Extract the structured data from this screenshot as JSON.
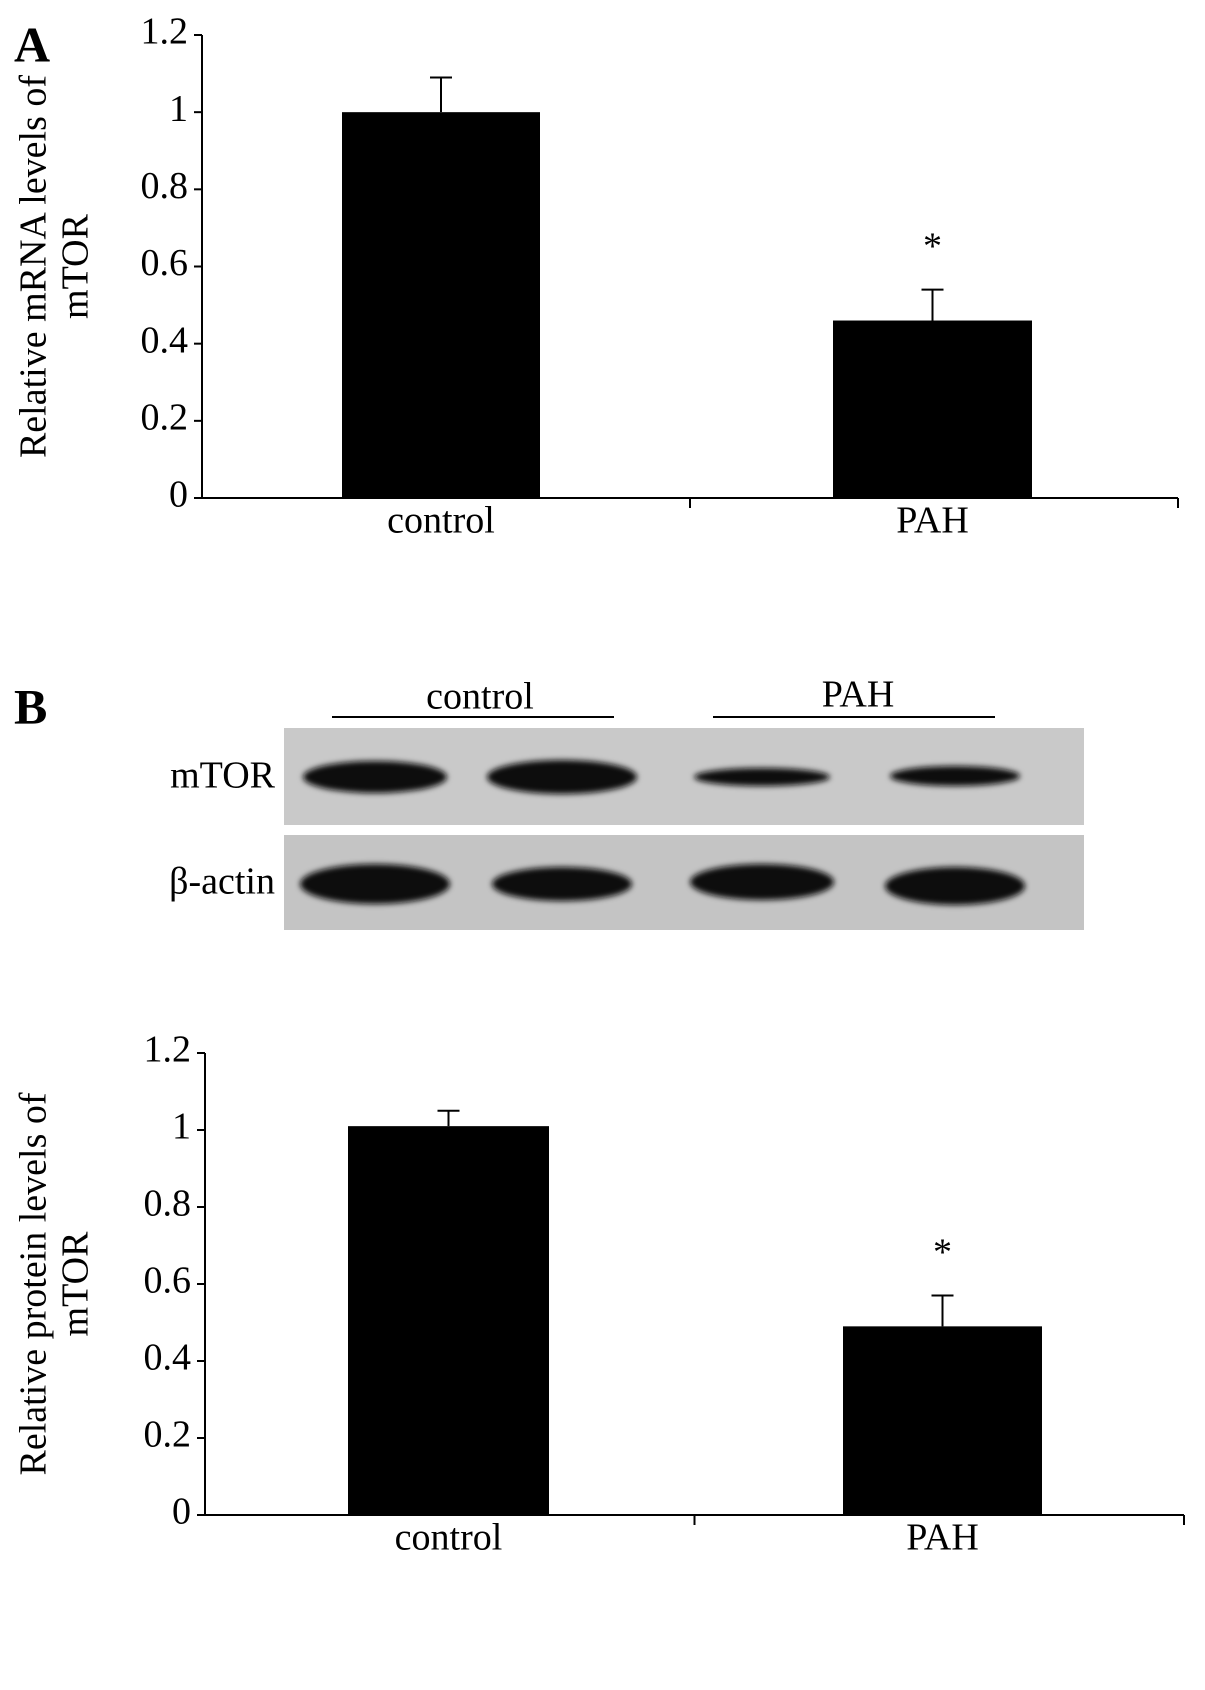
{
  "chart_data": [
    {
      "type": "bar",
      "panel": "A",
      "ylabel": [
        "Relative mRNA levels of",
        "mTOR"
      ],
      "categories": [
        "control",
        "PAH"
      ],
      "values": [
        1.0,
        0.46
      ],
      "errors": [
        0.09,
        0.08
      ],
      "value_annotations": [
        null,
        "*"
      ],
      "color": "#000000",
      "ylim": [
        0,
        1.2
      ],
      "yticks": [
        0,
        0.2,
        0.4,
        0.6,
        0.8,
        1,
        1.2
      ]
    },
    {
      "type": "bar",
      "ylabel": [
        "Relative protein levels of",
        "mTOR"
      ],
      "categories": [
        "control",
        "PAH"
      ],
      "values": [
        1.01,
        0.49
      ],
      "errors": [
        0.04,
        0.08
      ],
      "value_annotations": [
        null,
        "*"
      ],
      "color": "#000000",
      "ylim": [
        0,
        1.2
      ],
      "yticks": [
        0,
        0.2,
        0.4,
        0.6,
        0.8,
        1,
        1.2
      ]
    }
  ],
  "blot": {
    "panel": "B",
    "groups": [
      "control",
      "PAH"
    ],
    "rows": [
      "mTOR",
      "β-actin"
    ]
  }
}
